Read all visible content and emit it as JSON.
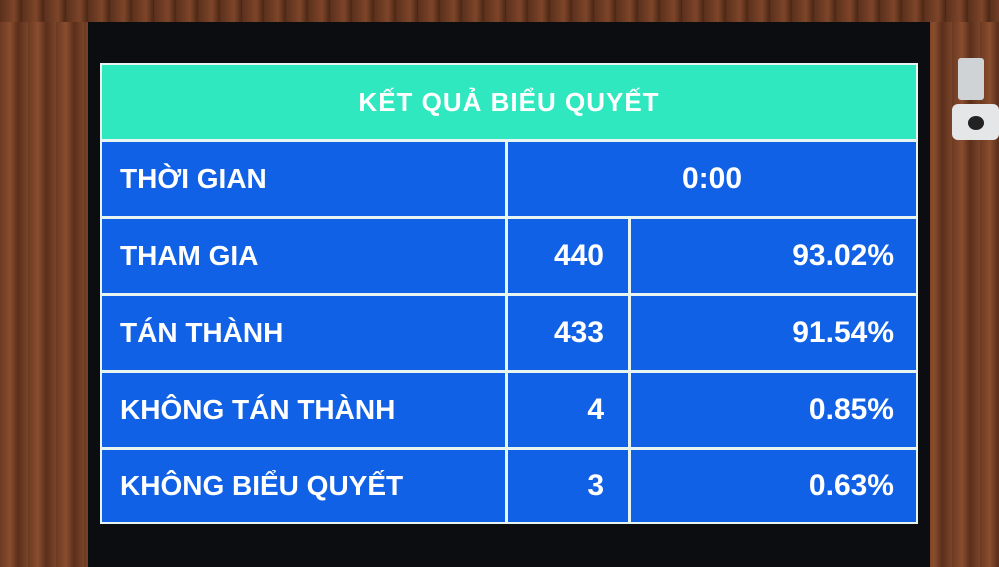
{
  "title": "KẾT QUẢ BIỂU QUYẾT",
  "time": {
    "label": "THỜI GIAN",
    "value": "0:00"
  },
  "rows": [
    {
      "label": "THAM GIA",
      "count": "440",
      "percent": "93.02%"
    },
    {
      "label": "TÁN THÀNH",
      "count": "433",
      "percent": "91.54%"
    },
    {
      "label": "KHÔNG TÁN THÀNH",
      "count": "4",
      "percent": "0.85%"
    },
    {
      "label": "KHÔNG BIỂU QUYẾT",
      "count": "3",
      "percent": "0.63%"
    }
  ],
  "colors": {
    "header": "#2fe8c0",
    "cell": "#1061e6",
    "text": "#ffffff"
  }
}
